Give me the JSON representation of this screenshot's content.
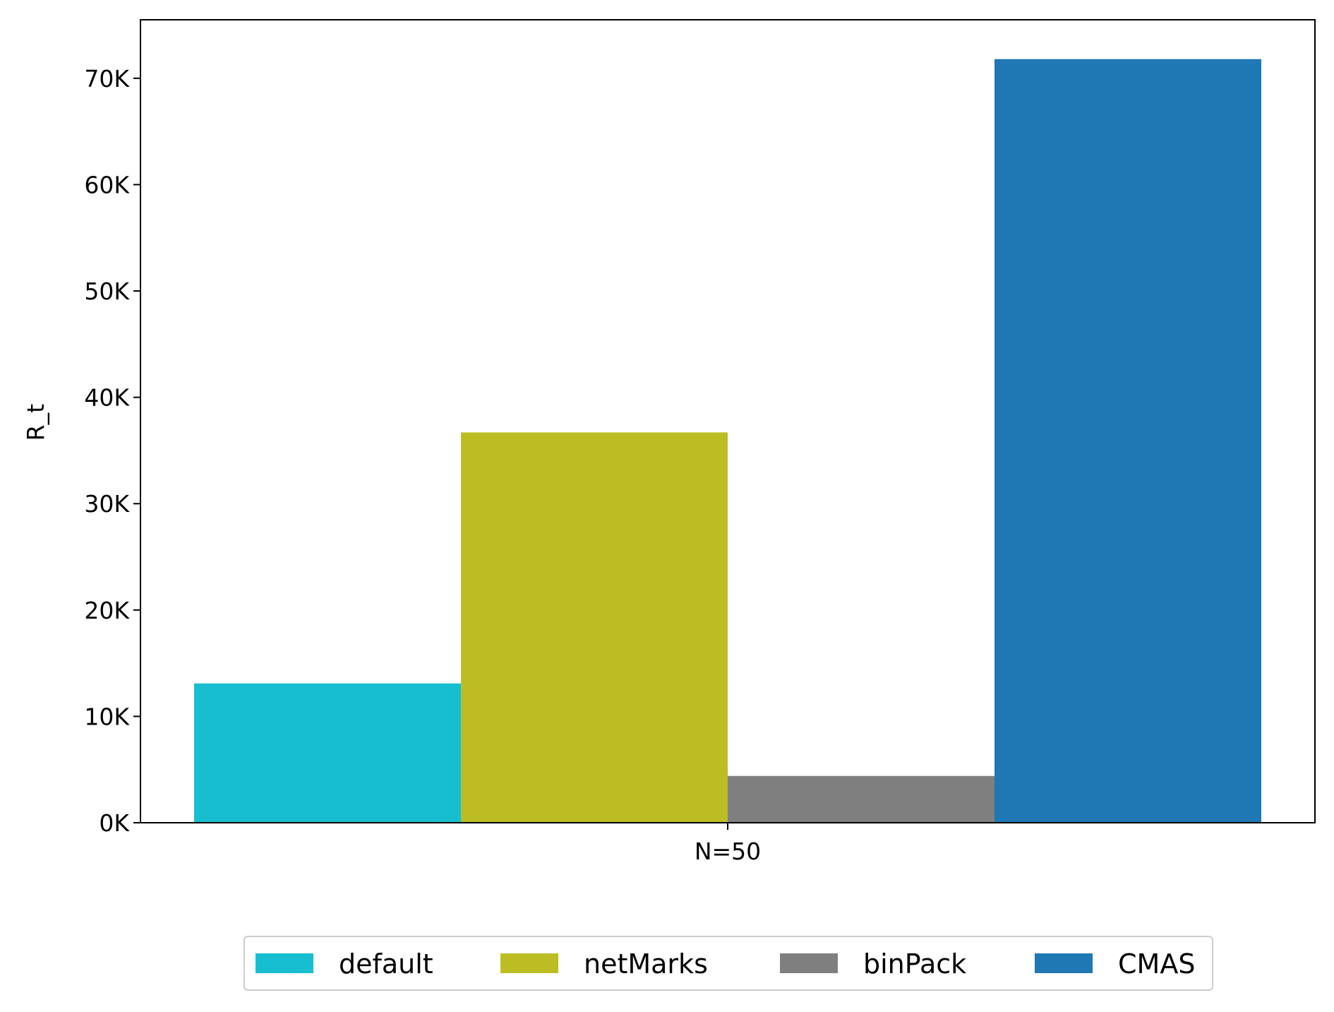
{
  "chart_data": {
    "type": "bar",
    "title": "",
    "xlabel": "",
    "ylabel": "R_t",
    "categories": [
      "N=50"
    ],
    "ylim": [
      0,
      75500
    ],
    "yticks": [
      0,
      10000,
      20000,
      30000,
      40000,
      50000,
      60000,
      70000
    ],
    "ytick_labels": [
      "0K",
      "10K",
      "20K",
      "30K",
      "40K",
      "50K",
      "60K",
      "70K"
    ],
    "grid": false,
    "legend_position": "bottom-center",
    "series": [
      {
        "name": "default",
        "color": "#17becf",
        "values": [
          13100
        ]
      },
      {
        "name": "netMarks",
        "color": "#bcbd22",
        "values": [
          36700
        ]
      },
      {
        "name": "binPack",
        "color": "#7f7f7f",
        "values": [
          4400
        ]
      },
      {
        "name": "CMAS",
        "color": "#1f77b4",
        "values": [
          71800
        ]
      }
    ]
  }
}
